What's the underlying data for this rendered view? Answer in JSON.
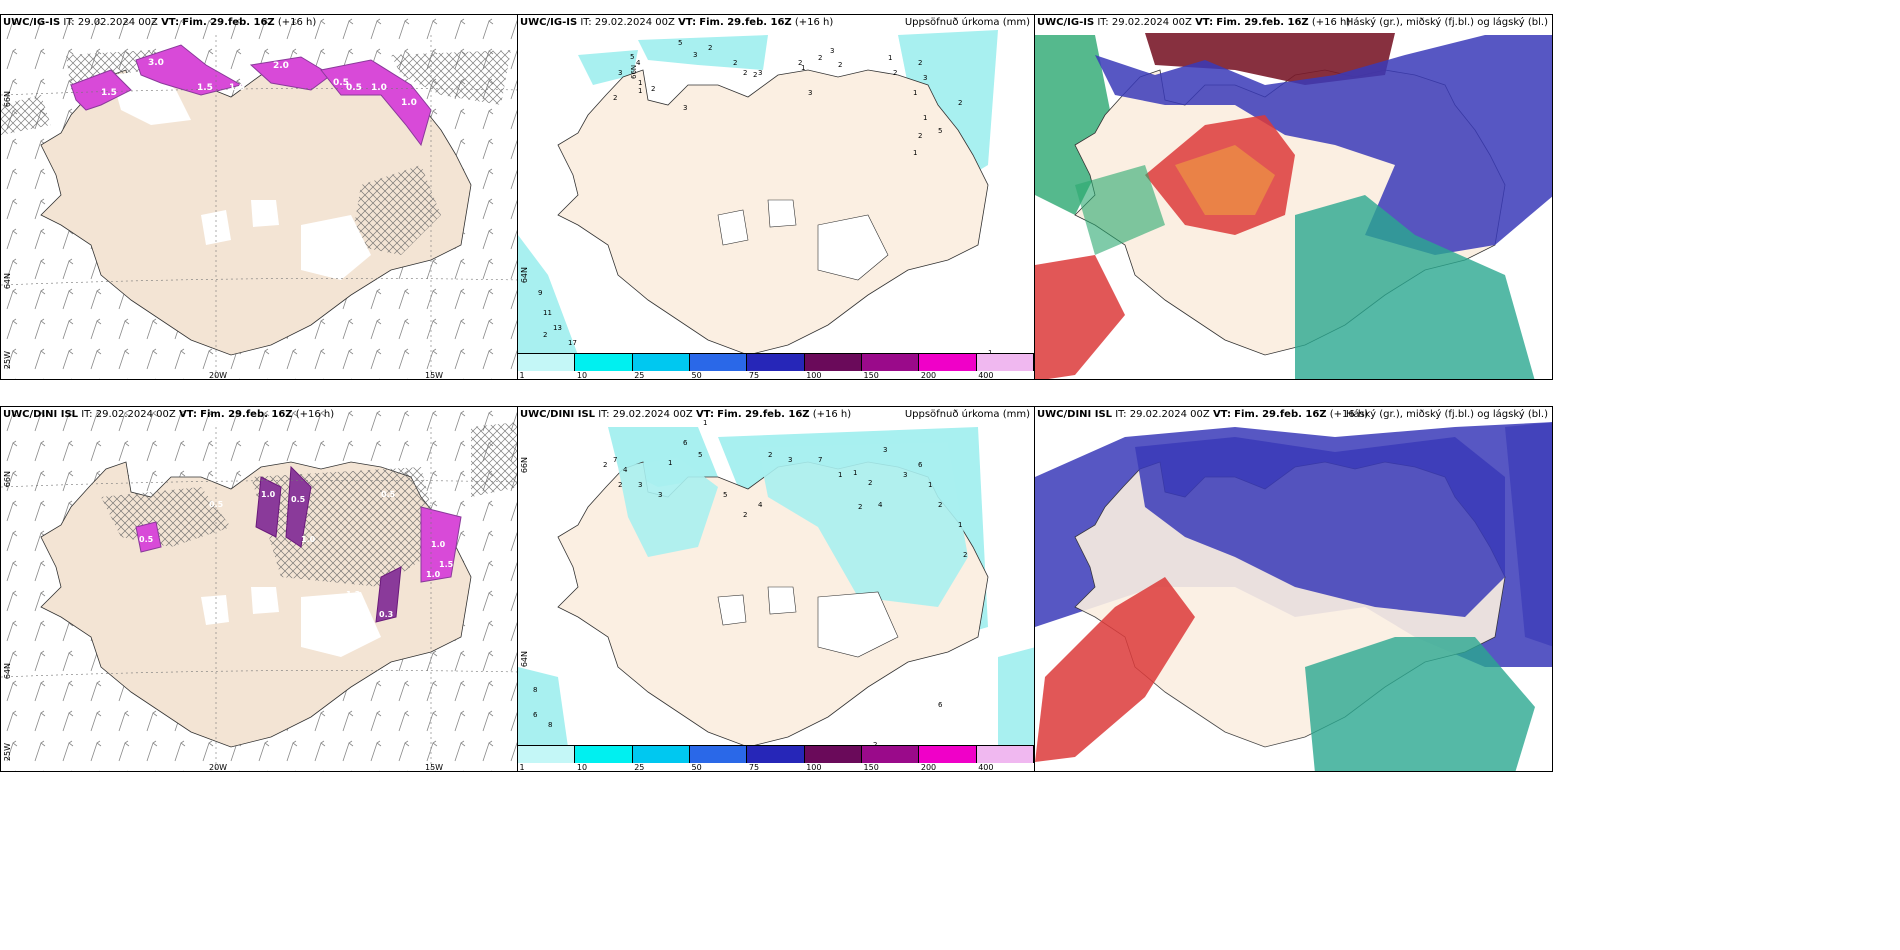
{
  "panels_top": {
    "left": {
      "model": "UWC/IG-IS",
      "it_label": "IT:",
      "it": "29.02.2024 00Z",
      "vt_label": "VT:",
      "vt": "Fim. 29.feb. 16Z",
      "lead": "(+16 h)",
      "contour_labels": [
        "3.0",
        "2.0",
        "1.5",
        "1.0",
        "1.0",
        "1.5",
        "0.5",
        "0.5",
        "1.0"
      ],
      "lat_labels": [
        "66N",
        "64N",
        "25W"
      ],
      "lon_labels": [
        "20W",
        "15W"
      ]
    },
    "middle": {
      "model": "UWC/IG-IS",
      "it_label": "IT:",
      "it": "29.02.2024 00Z",
      "vt_label": "VT:",
      "vt": "Fim. 29.feb. 16Z",
      "lead": "(+16 h)",
      "title": "Uppsöfnuð úrkoma (mm)",
      "values": [
        "5",
        "2",
        "3",
        "2",
        "2",
        "2",
        "3",
        "1",
        "3",
        "2",
        "2",
        "3",
        "2",
        "1",
        "2",
        "1",
        "4",
        "5",
        "3",
        "2",
        "3",
        "1",
        "2",
        "2",
        "3",
        "1",
        "1",
        "2",
        "1",
        "5",
        "2",
        "9",
        "11",
        "13",
        "17",
        "2",
        "1"
      ],
      "lat_labels": [
        "66N",
        "64N"
      ]
    },
    "right": {
      "model": "UWC/IG-IS",
      "it_label": "IT:",
      "it": "29.02.2024 00Z",
      "vt_label": "VT:",
      "vt": "Fim. 29.feb. 16Z",
      "lead": "(+16 h)",
      "title": "Háský (gr.), miðský (fj.bl.) og lágský (bl.)"
    }
  },
  "panels_bottom": {
    "left": {
      "model": "UWC/DINI ISL",
      "it_label": "IT:",
      "it": "29.02.2024 00Z",
      "vt_label": "VT:",
      "vt": "Fim. 29.feb. 16Z",
      "lead": "(+16 h)",
      "contour_labels": [
        "0.5",
        "1.0",
        "0.5",
        "1.0",
        "0.5",
        "1.0",
        "1.5",
        "1.0",
        "0.3",
        "1.3",
        "0.5"
      ],
      "lat_labels": [
        "66N",
        "64N",
        "25W"
      ],
      "lon_labels": [
        "20W",
        "15W"
      ]
    },
    "middle": {
      "model": "UWC/DINI ISL",
      "it_label": "IT:",
      "it": "29.02.2024 00Z",
      "vt_label": "VT:",
      "vt": "Fim. 29.feb. 16Z",
      "lead": "(+16 h)",
      "title": "Uppsöfnuð úrkoma (mm)",
      "values": [
        "7",
        "2",
        "4",
        "2",
        "1",
        "6",
        "5",
        "1",
        "3",
        "3",
        "5",
        "2",
        "4",
        "2",
        "3",
        "7",
        "1",
        "1",
        "2",
        "2",
        "4",
        "3",
        "3",
        "6",
        "1",
        "2",
        "1",
        "2",
        "8",
        "6",
        "8",
        "6",
        "2"
      ],
      "lat_labels": [
        "66N",
        "64N"
      ]
    },
    "right": {
      "model": "UWC/DINI ISL",
      "it_label": "IT:",
      "it": "29.02.2024 00Z",
      "vt_label": "VT:",
      "vt": "Fim. 29.feb. 16Z",
      "lead": "(+16 h)",
      "title": "Háský (gr.), miðský (fj.bl.) og lágský (bl.)"
    }
  },
  "colorbar": {
    "labels": [
      "1",
      "10",
      "25",
      "50",
      "75",
      "100",
      "150",
      "200",
      "400"
    ],
    "colors": [
      "#c4f7f7",
      "#00f0f0",
      "#00c8f0",
      "#2a68e8",
      "#2626b8",
      "#6a0a5a",
      "#9a0a8a",
      "#f000c8",
      "#f0b8f0"
    ]
  },
  "colors": {
    "land": "#f3e4d4",
    "land_precip_map": "#fbefe2",
    "snow": "#ffffff",
    "precip_magenta": "#d84ad8",
    "precip_purple": "#8a3a9a",
    "precip_cyan": "#a8f0f0",
    "cloud_high": "#dc3a3a",
    "cloud_mid": "#3a3ab8",
    "cloud_low": "#2aa890"
  }
}
